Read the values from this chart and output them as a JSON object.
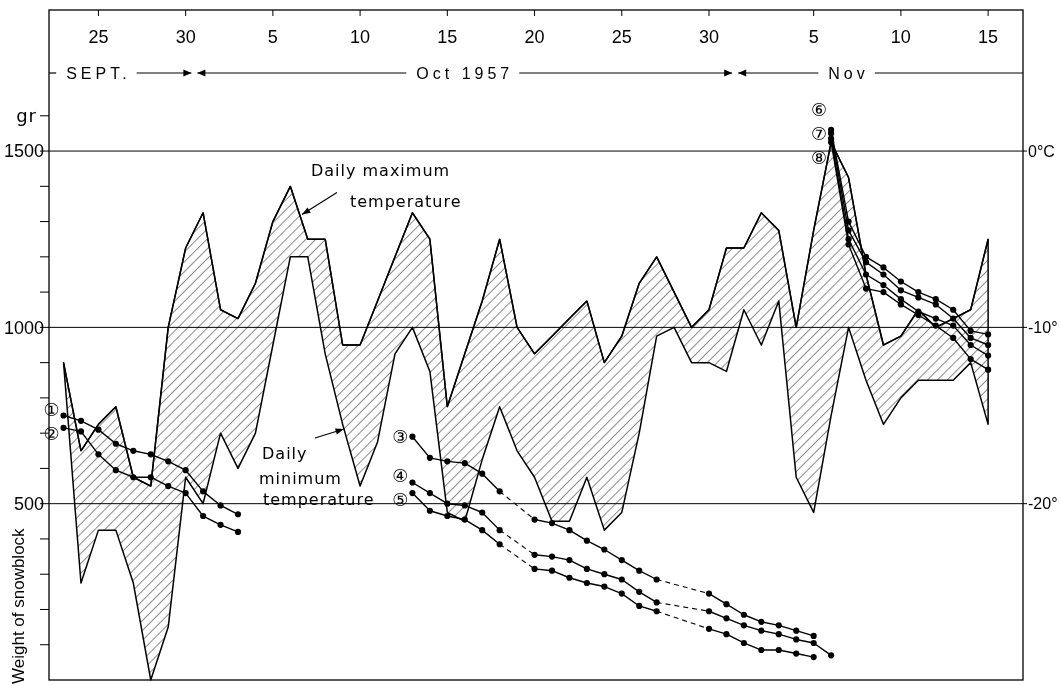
{
  "chart_data": {
    "type": "line",
    "ylabel": "Weight of snowblock",
    "x": [
      "1957-09-23",
      "1957-09-24",
      "1957-09-25",
      "1957-09-26",
      "1957-09-27",
      "1957-09-28",
      "1957-09-29",
      "1957-09-30",
      "1957-10-01",
      "1957-10-02",
      "1957-10-03",
      "1957-10-04",
      "1957-10-05",
      "1957-10-06",
      "1957-10-07",
      "1957-10-08",
      "1957-10-09",
      "1957-10-10",
      "1957-10-11",
      "1957-10-12",
      "1957-10-13",
      "1957-10-14",
      "1957-10-15",
      "1957-10-16",
      "1957-10-17",
      "1957-10-18",
      "1957-10-19",
      "1957-10-20",
      "1957-10-21",
      "1957-10-22",
      "1957-10-23",
      "1957-10-24",
      "1957-10-25",
      "1957-10-26",
      "1957-10-27",
      "1957-10-28",
      "1957-10-29",
      "1957-10-30",
      "1957-10-31",
      "1957-11-01",
      "1957-11-02",
      "1957-11-03",
      "1957-11-04",
      "1957-11-05",
      "1957-11-06",
      "1957-11-07",
      "1957-11-08",
      "1957-11-09",
      "1957-11-10",
      "1957-11-11",
      "1957-11-12",
      "1957-11-13",
      "1957-11-14",
      "1957-11-15"
    ],
    "xlim": [
      "1957-09-22T04:00",
      "1957-11-17"
    ],
    "xticks": [
      {
        "value": "1957-09-25",
        "label": "25"
      },
      {
        "value": "1957-09-30",
        "label": "30"
      },
      {
        "value": "1957-10-05",
        "label": "5"
      },
      {
        "value": "1957-10-10",
        "label": "10"
      },
      {
        "value": "1957-10-15",
        "label": "15"
      },
      {
        "value": "1957-10-20",
        "label": "20"
      },
      {
        "value": "1957-10-25",
        "label": "25"
      },
      {
        "value": "1957-10-30",
        "label": "30"
      },
      {
        "value": "1957-11-05",
        "label": "5"
      },
      {
        "value": "1957-11-10",
        "label": "10"
      },
      {
        "value": "1957-11-15",
        "label": "15"
      }
    ],
    "x2lim": [
      "1957-09-22T04:00",
      "1957-11-17"
    ],
    "x2ticks": [
      {
        "value": "1957-09-25",
        "label": "SEPT."
      },
      {
        "value": "1957-10-16",
        "label": "Oct 1957"
      },
      {
        "value": "1957-11-07",
        "label": "Nov"
      }
    ],
    "ylim": [
      0,
      1900
    ],
    "yticks": [
      {
        "value": 100,
        "label": null
      },
      {
        "value": 200,
        "label": null
      },
      {
        "value": 300,
        "label": null
      },
      {
        "value": 400,
        "label": null
      },
      500,
      {
        "value": 600,
        "label": null
      },
      {
        "value": 700,
        "label": null
      },
      {
        "value": 800,
        "label": null
      },
      {
        "value": 900,
        "label": null
      },
      1000,
      {
        "value": 1100,
        "label": null
      },
      {
        "value": 1200,
        "label": null
      },
      {
        "value": 1300,
        "label": null
      },
      {
        "value": 1400,
        "label": null
      },
      1500,
      {
        "value": 1600,
        "label": null
      }
    ],
    "y2lim": [
      -30,
      8
    ],
    "y2ticks": [
      {
        "value": 0,
        "label": "0°C"
      },
      {
        "value": -10,
        "label": "-10°"
      },
      {
        "value": -20,
        "label": "-20°"
      }
    ],
    "grid": "y",
    "marker": "circle",
    "annotations": [
      {
        "text": "Daily maximum temperature",
        "x": "1957-10-06T16:00",
        "y": 1320
      },
      "Daily minimum temperature",
      "gr"
    ],
    "series": [
      {
        "type": "line",
        "axis": "y2",
        "marker": "none",
        "color": "#000000",
        "values": [
          -12,
          -17,
          -15.5,
          -14.5,
          -18.5,
          -19,
          -10,
          -5.5,
          -3.5,
          -9,
          -9.5,
          -7.5,
          -4,
          -2,
          -5,
          -5,
          -11,
          -11,
          -8.5,
          -6,
          -3.5,
          -5,
          -14.5,
          -11.5,
          -8.5,
          -5,
          -10,
          -11.5,
          -10.5,
          -9.5,
          -8.5,
          -12,
          -10.5,
          -7.5,
          -6,
          -8,
          -10,
          -9,
          -5.5,
          -5.5,
          -3.5,
          -4.5,
          -10,
          -4.5,
          0.5,
          -1.5,
          -7,
          -11,
          -10.5,
          -9,
          -10,
          -9.5,
          -9,
          -5
        ],
        "upper": [
          -12,
          -17,
          -15.5,
          -14.5,
          -18.5,
          -19,
          -10,
          -5.5,
          -3.5,
          -9,
          -9.5,
          -7.5,
          -4,
          -2,
          -5,
          -5,
          -11,
          -11,
          -8.5,
          -6,
          -3.5,
          -5,
          -14.5,
          -11.5,
          -8.5,
          -5,
          -10,
          -11.5,
          -10.5,
          -9.5,
          -8.5,
          -12,
          -10.5,
          -7.5,
          -6,
          -8,
          -10,
          -9,
          -5.5,
          -5.5,
          -3.5,
          -4.5,
          -10,
          -4.5,
          0.5,
          -1.5,
          -7,
          -11,
          -10.5,
          -9,
          -10,
          -9.5,
          -9,
          -5
        ],
        "lower": [
          -12,
          -24.5,
          -21.5,
          -21.5,
          -24.5,
          -30,
          -27,
          -18.5,
          -20,
          -16,
          -18,
          -16,
          -11,
          -6,
          -6,
          -11.5,
          -15.5,
          -19,
          -16.5,
          -11.5,
          -10,
          -12.5,
          -20.5,
          -21,
          -17.5,
          -14.5,
          -17,
          -18.5,
          -21,
          -21,
          -18.5,
          -21.5,
          -20.5,
          -16,
          -10.5,
          -10,
          -12,
          -12,
          -12.5,
          -9,
          -11,
          -8.5,
          -18.5,
          -20.5,
          -15,
          -10,
          -13,
          -15.5,
          -14,
          -13,
          -13,
          -13,
          -12,
          -15.5
        ]
      },
      {
        "name": "①",
        "color": "#000000",
        "x": [
          "1957-09-23",
          "1957-09-24",
          "1957-09-25",
          "1957-09-26",
          "1957-09-27",
          "1957-09-28",
          "1957-09-29",
          "1957-09-30",
          "1957-10-01",
          "1957-10-02",
          "1957-10-03"
        ],
        "values": [
          750,
          735,
          710,
          670,
          650,
          640,
          620,
          595,
          535,
          495,
          470
        ]
      },
      {
        "name": "②",
        "color": "#000000",
        "x": [
          "1957-09-23",
          "1957-09-24",
          "1957-09-25",
          "1957-09-26",
          "1957-09-27",
          "1957-09-28",
          "1957-09-29",
          "1957-09-30",
          "1957-10-01",
          "1957-10-02",
          "1957-10-03"
        ],
        "values": [
          715,
          705,
          640,
          595,
          575,
          575,
          550,
          530,
          465,
          440,
          420
        ]
      },
      {
        "name": "③",
        "color": "#000000",
        "x": [
          "1957-10-13",
          "1957-10-14",
          "1957-10-15",
          "1957-10-16",
          "1957-10-17",
          "1957-10-18",
          "1957-10-20",
          "1957-10-21",
          "1957-10-22",
          "1957-10-23",
          "1957-10-24",
          "1957-10-25",
          "1957-10-26",
          "1957-10-27",
          "1957-10-30",
          "1957-10-31",
          "1957-11-01",
          "1957-11-02",
          "1957-11-03",
          "1957-11-04",
          "1957-11-05"
        ],
        "values": [
          690,
          630,
          620,
          615,
          585,
          535,
          455,
          445,
          425,
          395,
          370,
          340,
          310,
          285,
          245,
          215,
          185,
          165,
          155,
          140,
          125
        ]
      },
      {
        "name": "④",
        "color": "#000000",
        "x": [
          "1957-10-13",
          "1957-10-14",
          "1957-10-15",
          "1957-10-16",
          "1957-10-17",
          "1957-10-18",
          "1957-10-20",
          "1957-10-21",
          "1957-10-22",
          "1957-10-23",
          "1957-10-24",
          "1957-10-25",
          "1957-10-26",
          "1957-10-27",
          "1957-10-30",
          "1957-10-31",
          "1957-11-01",
          "1957-11-02",
          "1957-11-03",
          "1957-11-04",
          "1957-11-05",
          "1957-11-06"
        ],
        "values": [
          560,
          530,
          500,
          495,
          475,
          425,
          355,
          350,
          340,
          315,
          300,
          285,
          250,
          220,
          195,
          175,
          155,
          140,
          130,
          115,
          105,
          70
        ]
      },
      {
        "name": "⑤",
        "color": "#000000",
        "x": [
          "1957-10-13",
          "1957-10-14",
          "1957-10-15",
          "1957-10-16",
          "1957-10-17",
          "1957-10-18",
          "1957-10-20",
          "1957-10-21",
          "1957-10-22",
          "1957-10-23",
          "1957-10-24",
          "1957-10-25",
          "1957-10-26",
          "1957-10-27",
          "1957-10-30",
          "1957-10-31",
          "1957-11-01",
          "1957-11-02",
          "1957-11-03",
          "1957-11-04",
          "1957-11-05"
        ],
        "values": [
          530,
          480,
          465,
          455,
          425,
          385,
          315,
          310,
          290,
          275,
          265,
          245,
          210,
          195,
          145,
          130,
          105,
          85,
          85,
          75,
          65
        ]
      },
      {
        "name": "⑥",
        "color": "#000000",
        "x": [
          "1957-11-06",
          "1957-11-07",
          "1957-11-08",
          "1957-11-09",
          "1957-11-10",
          "1957-11-11",
          "1957-11-12",
          "1957-11-13",
          "1957-11-14",
          "1957-11-15"
        ],
        "values": [
          1560,
          1300,
          1200,
          1170,
          1130,
          1100,
          1080,
          1050,
          990,
          980
        ]
      },
      {
        "name": "⑦",
        "color": "#000000",
        "x": [
          "1957-11-06",
          "1957-11-07",
          "1957-11-08",
          "1957-11-09",
          "1957-11-10",
          "1957-11-11",
          "1957-11-12",
          "1957-11-13",
          "1957-11-14",
          "1957-11-15"
        ],
        "values": [
          1550,
          1275,
          1185,
          1150,
          1105,
          1085,
          1065,
          1025,
          970,
          950
        ]
      },
      {
        "name": "⑧",
        "color": "#000000",
        "x": [
          "1957-11-06",
          "1957-11-07",
          "1957-11-08",
          "1957-11-09",
          "1957-11-10",
          "1957-11-11",
          "1957-11-12",
          "1957-11-13",
          "1957-11-14",
          "1957-11-15"
        ],
        "values": [
          1535,
          1250,
          1150,
          1120,
          1080,
          1045,
          1025,
          1005,
          950,
          920
        ]
      },
      {
        "color": "#000000",
        "x": [
          "1957-11-06",
          "1957-11-07",
          "1957-11-08",
          "1957-11-09",
          "1957-11-10",
          "1957-11-11",
          "1957-11-12",
          "1957-11-13",
          "1957-11-14",
          "1957-11-15"
        ],
        "values": [
          1525,
          1235,
          1110,
          1100,
          1065,
          1035,
          1005,
          970,
          910,
          880
        ]
      }
    ]
  }
}
